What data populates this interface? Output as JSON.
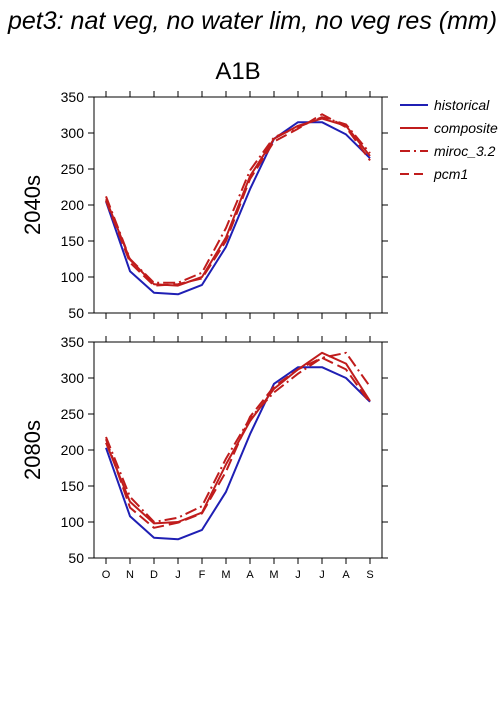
{
  "figure": {
    "title": "pet3: nat veg, no water lim, no veg res (mm)",
    "scenario": "A1B"
  },
  "legend": {
    "placement": "top-right, outside plot area",
    "entries": [
      {
        "name": "historical",
        "color": "#1f1fb4",
        "dash": "solid"
      },
      {
        "name": "composite",
        "color": "#c01c1c",
        "dash": "solid"
      },
      {
        "name": "miroc_3.2",
        "color": "#c01c1c",
        "dash": "dashdot"
      },
      {
        "name": "pcm1",
        "color": "#c01c1c",
        "dash": "dashed"
      }
    ]
  },
  "chart_data": [
    {
      "type": "line",
      "panel_label": "2040s",
      "xlabel": "",
      "ylabel": "",
      "categories": [
        "O",
        "N",
        "D",
        "J",
        "F",
        "M",
        "A",
        "M",
        "J",
        "J",
        "A",
        "S"
      ],
      "ylim": [
        50,
        350
      ],
      "yticks": [
        50,
        100,
        150,
        200,
        250,
        300,
        350
      ],
      "series": [
        {
          "name": "historical",
          "values": [
            205,
            108,
            78,
            76,
            89,
            142,
            222,
            292,
            315,
            315,
            298,
            265
          ]
        },
        {
          "name": "composite",
          "values": [
            208,
            124,
            90,
            88,
            100,
            155,
            240,
            292,
            310,
            320,
            310,
            268
          ]
        },
        {
          "name": "miroc_3.2",
          "values": [
            212,
            125,
            92,
            92,
            106,
            168,
            248,
            294,
            308,
            322,
            312,
            272
          ]
        },
        {
          "name": "pcm1",
          "values": [
            206,
            120,
            88,
            90,
            98,
            150,
            236,
            288,
            306,
            326,
            308,
            262
          ]
        }
      ]
    },
    {
      "type": "line",
      "panel_label": "2080s",
      "xlabel": "",
      "ylabel": "",
      "categories": [
        "O",
        "N",
        "D",
        "J",
        "F",
        "M",
        "A",
        "M",
        "J",
        "J",
        "A",
        "S"
      ],
      "ylim": [
        50,
        350
      ],
      "yticks": [
        50,
        100,
        150,
        200,
        250,
        300,
        350
      ],
      "series": [
        {
          "name": "historical",
          "values": [
            203,
            108,
            78,
            76,
            89,
            142,
            222,
            292,
            315,
            315,
            300,
            267
          ]
        },
        {
          "name": "composite",
          "values": [
            210,
            128,
            98,
            100,
            113,
            180,
            240,
            285,
            312,
            335,
            320,
            268
          ]
        },
        {
          "name": "miroc_3.2",
          "values": [
            218,
            135,
            100,
            106,
            122,
            188,
            244,
            280,
            306,
            328,
            335,
            288
          ]
        },
        {
          "name": "pcm1",
          "values": [
            215,
            120,
            92,
            99,
            112,
            170,
            246,
            288,
            312,
            328,
            312,
            265
          ]
        }
      ]
    }
  ]
}
